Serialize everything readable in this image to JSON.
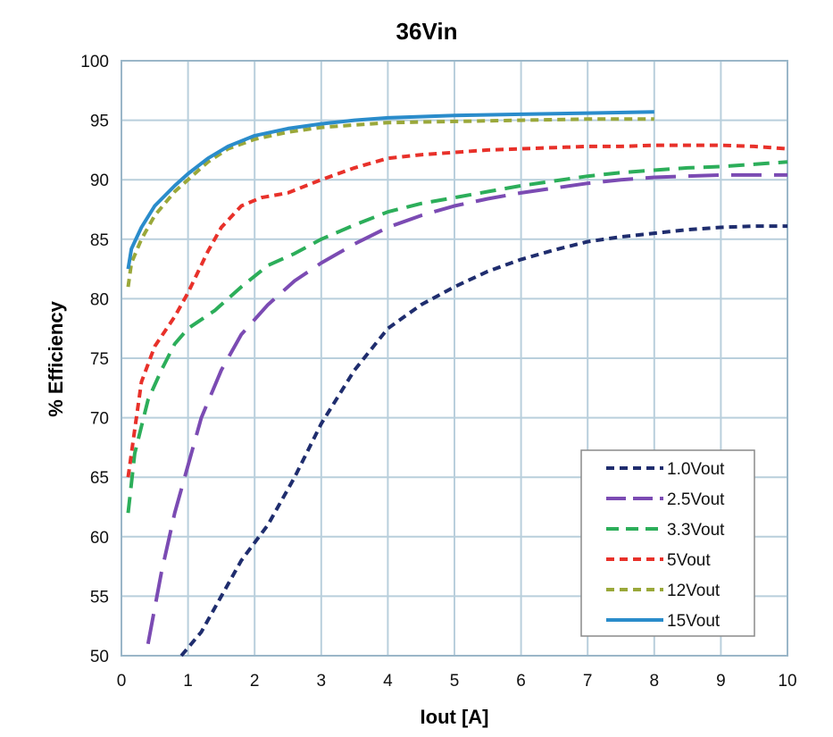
{
  "chart_data": {
    "type": "line",
    "title": "36Vin",
    "xlabel": "Iout [A]",
    "ylabel": "% Efficiency",
    "xlim": [
      0,
      10
    ],
    "ylim": [
      50,
      100
    ],
    "xticks": [
      0,
      1,
      2,
      3,
      4,
      5,
      6,
      7,
      8,
      9,
      10
    ],
    "yticks": [
      50,
      55,
      60,
      65,
      70,
      75,
      80,
      85,
      90,
      95,
      100
    ],
    "grid": true,
    "legend_position": "bottom-right",
    "series": [
      {
        "name": "1.0Vout",
        "color": "#1f2d6e",
        "dash": "short-dash",
        "points": [
          [
            0.9,
            50
          ],
          [
            1.2,
            52
          ],
          [
            1.5,
            55
          ],
          [
            1.8,
            58
          ],
          [
            2.2,
            61
          ],
          [
            2.6,
            65
          ],
          [
            3,
            69.5
          ],
          [
            3.5,
            74
          ],
          [
            4,
            77.5
          ],
          [
            4.5,
            79.5
          ],
          [
            5,
            81
          ],
          [
            5.5,
            82.3
          ],
          [
            6,
            83.3
          ],
          [
            6.5,
            84.1
          ],
          [
            7,
            84.8
          ],
          [
            7.5,
            85.2
          ],
          [
            8,
            85.5
          ],
          [
            8.5,
            85.8
          ],
          [
            9,
            86
          ],
          [
            9.5,
            86.1
          ],
          [
            10,
            86.1
          ]
        ]
      },
      {
        "name": "2.5Vout",
        "color": "#7b4bb3",
        "dash": "long-dash",
        "points": [
          [
            0.4,
            51
          ],
          [
            0.6,
            57
          ],
          [
            0.8,
            62
          ],
          [
            1,
            66
          ],
          [
            1.2,
            70
          ],
          [
            1.5,
            74
          ],
          [
            1.8,
            77
          ],
          [
            2.2,
            79.5
          ],
          [
            2.6,
            81.5
          ],
          [
            3,
            83
          ],
          [
            3.5,
            84.6
          ],
          [
            4,
            86
          ],
          [
            4.5,
            87
          ],
          [
            5,
            87.8
          ],
          [
            5.5,
            88.4
          ],
          [
            6,
            88.9
          ],
          [
            6.5,
            89.3
          ],
          [
            7,
            89.7
          ],
          [
            7.5,
            90
          ],
          [
            8,
            90.2
          ],
          [
            8.5,
            90.3
          ],
          [
            9,
            90.4
          ],
          [
            9.5,
            90.4
          ],
          [
            10,
            90.4
          ]
        ]
      },
      {
        "name": "3.3Vout",
        "color": "#2cae5a",
        "dash": "medium-dash",
        "points": [
          [
            0.1,
            62
          ],
          [
            0.2,
            67
          ],
          [
            0.4,
            71.5
          ],
          [
            0.6,
            74
          ],
          [
            0.8,
            76.2
          ],
          [
            1,
            77.5
          ],
          [
            1.4,
            79
          ],
          [
            1.8,
            81
          ],
          [
            2.2,
            82.8
          ],
          [
            2.6,
            83.8
          ],
          [
            3,
            85
          ],
          [
            3.5,
            86.2
          ],
          [
            4,
            87.3
          ],
          [
            4.5,
            88
          ],
          [
            5,
            88.5
          ],
          [
            5.5,
            89
          ],
          [
            6,
            89.5
          ],
          [
            6.5,
            89.9
          ],
          [
            7,
            90.3
          ],
          [
            7.5,
            90.6
          ],
          [
            8,
            90.8
          ],
          [
            8.5,
            91
          ],
          [
            9,
            91.1
          ],
          [
            9.5,
            91.3
          ],
          [
            10,
            91.5
          ]
        ]
      },
      {
        "name": "5Vout",
        "color": "#e8312a",
        "dash": "short-dash",
        "points": [
          [
            0.1,
            65
          ],
          [
            0.2,
            69
          ],
          [
            0.3,
            73
          ],
          [
            0.5,
            76
          ],
          [
            0.8,
            78.5
          ],
          [
            1,
            80.5
          ],
          [
            1.3,
            84
          ],
          [
            1.5,
            86
          ],
          [
            1.8,
            87.8
          ],
          [
            2.1,
            88.5
          ],
          [
            2.5,
            88.9
          ],
          [
            3,
            90
          ],
          [
            3.5,
            91
          ],
          [
            4,
            91.8
          ],
          [
            4.5,
            92.1
          ],
          [
            5,
            92.3
          ],
          [
            5.5,
            92.5
          ],
          [
            6,
            92.6
          ],
          [
            6.5,
            92.7
          ],
          [
            7,
            92.8
          ],
          [
            7.5,
            92.8
          ],
          [
            8,
            92.9
          ],
          [
            8.5,
            92.9
          ],
          [
            9,
            92.9
          ],
          [
            9.5,
            92.8
          ],
          [
            10,
            92.6
          ]
        ]
      },
      {
        "name": "12Vout",
        "color": "#9aa83a",
        "dash": "short-dash",
        "points": [
          [
            0.1,
            81
          ],
          [
            0.15,
            83
          ],
          [
            0.3,
            85
          ],
          [
            0.5,
            87
          ],
          [
            0.8,
            89
          ],
          [
            1,
            90
          ],
          [
            1.3,
            91.5
          ],
          [
            1.6,
            92.6
          ],
          [
            2,
            93.4
          ],
          [
            2.5,
            94
          ],
          [
            3,
            94.4
          ],
          [
            3.5,
            94.6
          ],
          [
            4,
            94.8
          ],
          [
            5,
            94.9
          ],
          [
            6,
            95
          ],
          [
            7,
            95.1
          ],
          [
            8,
            95.1
          ]
        ]
      },
      {
        "name": "15Vout",
        "color": "#2a8ccb",
        "dash": "solid",
        "points": [
          [
            0.1,
            82.5
          ],
          [
            0.15,
            84.2
          ],
          [
            0.3,
            86
          ],
          [
            0.5,
            87.8
          ],
          [
            0.8,
            89.5
          ],
          [
            1,
            90.5
          ],
          [
            1.3,
            91.8
          ],
          [
            1.6,
            92.8
          ],
          [
            2,
            93.7
          ],
          [
            2.5,
            94.3
          ],
          [
            3,
            94.7
          ],
          [
            3.5,
            95
          ],
          [
            4,
            95.2
          ],
          [
            5,
            95.4
          ],
          [
            6,
            95.5
          ],
          [
            7,
            95.6
          ],
          [
            8,
            95.7
          ]
        ]
      }
    ]
  }
}
